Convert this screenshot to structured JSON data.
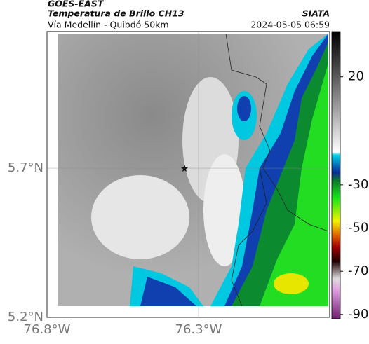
{
  "header": {
    "satellite": "GOES-EAST",
    "product": "Temperatura de Brillo CH13",
    "region": "Vía Medellín - Quibdó 50km",
    "source": "SIATA",
    "timestamp": "2024-05-05 06:59"
  },
  "map": {
    "lat_lim": [
      5.2,
      6.158
    ],
    "lon_lim": [
      -76.8,
      -75.867
    ],
    "lat_ticks": [
      {
        "value": 5.7,
        "label": "5.7°N"
      },
      {
        "value": 5.2,
        "label": "5.2°N"
      }
    ],
    "lon_ticks": [
      {
        "value": -76.8,
        "label": "76.8°W"
      },
      {
        "value": -76.3,
        "label": "76.3°W"
      }
    ]
  },
  "colorbar": {
    "lim": [
      -92,
      41
    ],
    "ticks": [
      20,
      -30,
      -50,
      -70,
      -90
    ]
  }
}
